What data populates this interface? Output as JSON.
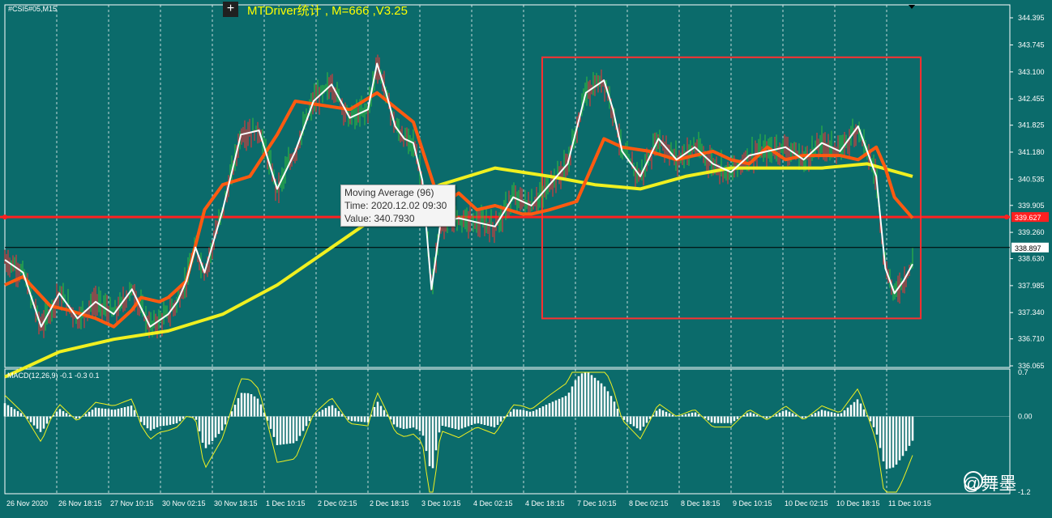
{
  "symbol": "#CSI5#05,M15",
  "title": "MTDriver统计 , M=666 ,V3.25",
  "tooltip": {
    "line1": "Moving Average (96)",
    "line2": "Time: 2020.12.02 09:30",
    "line3": "Value: 340.7930"
  },
  "macd_label": "MACD(12,26,9) -0.1 -0.3 0.1",
  "watermark": "@舞墨",
  "colors": {
    "bg": "#0b6b6b",
    "up": "#34c03a",
    "down": "#ff3030",
    "ma_short": "#ffffff",
    "ma_mid": "#ff5a10",
    "ma_long": "#f0f020",
    "hline": "#ff2020",
    "box": "#ff3030"
  },
  "chart_data": {
    "type": "line",
    "title": "",
    "price_axis": {
      "ticks": [
        344.395,
        343.745,
        343.1,
        342.455,
        341.825,
        341.18,
        340.535,
        339.905,
        339.26,
        338.63,
        337.985,
        337.34,
        336.71,
        336.065
      ],
      "ylim": [
        336.065,
        344.395
      ]
    },
    "current_price": 338.897,
    "red_line_price": "339.627",
    "time_labels": [
      "26 Nov 2020",
      "26 Nov 18:15",
      "27 Nov 10:15",
      "30 Nov 02:15",
      "30 Nov 18:15",
      "1 Dec 10:15",
      "2 Dec 02:15",
      "2 Dec 18:15",
      "3 Dec 10:15",
      "4 Dec 02:15",
      "4 Dec 18:15",
      "7 Dec 10:15",
      "8 Dec 02:15",
      "8 Dec 18:15",
      "9 Dec 10:15",
      "10 Dec 02:15",
      "10 Dec 18:15",
      "11 Dec 10:15"
    ],
    "rectangle": {
      "from_price": 343.45,
      "to_price": 337.2
    },
    "series": [
      {
        "name": "Moving Average (96)",
        "x": [
          0,
          6,
          12,
          18,
          24,
          30,
          36,
          42,
          48,
          54,
          60,
          65,
          70,
          75,
          80,
          85,
          90,
          95,
          100
        ],
        "values": [
          335.8,
          336.4,
          336.7,
          336.9,
          337.3,
          338.0,
          338.9,
          339.8,
          340.4,
          340.8,
          340.6,
          340.4,
          340.3,
          340.6,
          340.8,
          340.8,
          340.8,
          340.9,
          340.6
        ]
      },
      {
        "name": "",
        "x": [
          0,
          2,
          5,
          7,
          10,
          12,
          14,
          15,
          17,
          18,
          20,
          22,
          24,
          27,
          30,
          32,
          35,
          38,
          41,
          45,
          48,
          50,
          52,
          54,
          57,
          58,
          60,
          63,
          66,
          68,
          71,
          74,
          76,
          78,
          80,
          82,
          84,
          86,
          88,
          90,
          92,
          94,
          96,
          97,
          98,
          100
        ],
        "values": [
          338.0,
          338.2,
          337.5,
          337.4,
          337.2,
          337.0,
          337.4,
          337.7,
          337.6,
          337.7,
          338.1,
          339.8,
          340.4,
          340.6,
          341.6,
          342.4,
          342.3,
          342.2,
          342.6,
          341.9,
          339.9,
          340.2,
          339.8,
          339.9,
          339.7,
          339.7,
          339.8,
          340.0,
          341.5,
          341.3,
          341.2,
          341.0,
          341.1,
          341.2,
          341.0,
          340.9,
          341.3,
          341.0,
          341.1,
          341.1,
          341.1,
          341.0,
          341.3,
          340.8,
          340.1,
          339.6
        ]
      },
      {
        "name": "",
        "x": [
          0,
          2,
          4,
          6,
          8,
          10,
          12,
          14,
          16,
          18,
          19,
          20,
          21,
          22,
          24,
          26,
          28,
          30,
          32,
          34,
          36,
          38,
          40,
          41,
          42,
          43,
          44,
          45,
          46,
          47,
          48,
          50,
          52,
          54,
          56,
          58,
          60,
          62,
          64,
          66,
          67,
          68,
          70,
          72,
          74,
          76,
          78,
          80,
          82,
          84,
          86,
          88,
          90,
          92,
          94,
          96,
          97,
          98,
          99,
          100
        ],
        "values": [
          338.6,
          338.3,
          337.0,
          337.8,
          337.2,
          337.6,
          337.3,
          337.9,
          337.0,
          337.3,
          337.6,
          338.1,
          338.9,
          338.3,
          339.8,
          341.6,
          341.7,
          340.3,
          341.2,
          342.4,
          342.8,
          342.0,
          342.2,
          343.3,
          342.6,
          341.8,
          341.5,
          341.4,
          340.5,
          337.9,
          339.5,
          339.6,
          339.5,
          339.4,
          340.1,
          339.9,
          340.4,
          340.9,
          342.6,
          342.9,
          342.2,
          341.2,
          340.6,
          341.5,
          341.0,
          341.3,
          340.9,
          340.7,
          341.1,
          341.2,
          341.3,
          341.0,
          341.4,
          341.2,
          341.8,
          340.6,
          338.4,
          337.8,
          338.1,
          338.5
        ]
      }
    ],
    "macd": {
      "ylim": [
        -1.2,
        0.7
      ],
      "ticks": [
        0.7,
        0.0,
        -1.2
      ]
    }
  }
}
